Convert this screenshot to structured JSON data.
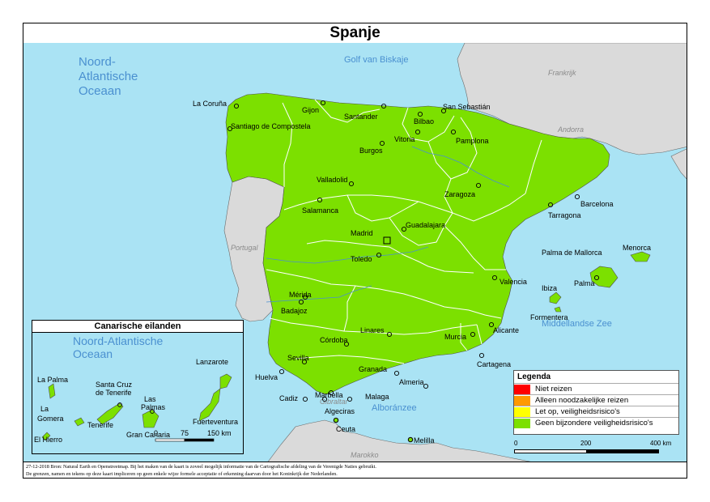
{
  "title": "Spanje",
  "colors": {
    "sea": "#aae3f4",
    "spain": "#7ce000",
    "neighbor": "#dadada",
    "border": "#ffffff",
    "coast": "#6a6a6a"
  },
  "seas": {
    "atlantic": [
      "Noord-",
      "Atlantische",
      "Oceaan"
    ],
    "biscay": "Golf van Biskaje",
    "med": "Middellandse Zee",
    "alboran": "Alboránzee"
  },
  "countries": {
    "france": "Frankrijk",
    "andorra": "Andorra",
    "portugal": "Portugal",
    "morocco": "Marokko",
    "gibraltar": "Gibraltar"
  },
  "cities": {
    "la_coruna": "La Coruña",
    "gijon": "Gijon",
    "santander": "Santander",
    "bilbao": "Bilbao",
    "san_sebastian": "San Sebastián",
    "santiago": "Santiago de Compostela",
    "vitoria": "Vitoria",
    "pamplona": "Pamplona",
    "burgos": "Burgos",
    "valladolid": "Valladolid",
    "zaragoza": "Zaragoza",
    "barcelona": "Barcelona",
    "tarragona": "Tarragona",
    "salamanca": "Salamanca",
    "guadalajara": "Guadalajara",
    "madrid": "Madrid",
    "toledo": "Toledo",
    "valencia": "Valencia",
    "merida": "Mérida",
    "badajoz": "Badajoz",
    "linares": "Linares",
    "cordoba": "Córdoba",
    "murcia": "Murcia",
    "alicante": "Alicante",
    "sevilla": "Sevilla",
    "granada": "Granada",
    "almeria": "Almeria",
    "cartagena": "Cartagena",
    "huelva": "Huelva",
    "cadiz": "Cadiz",
    "marbella": "Marbella",
    "malaga": "Malaga",
    "algeciras": "Algeciras",
    "ceuta": "Ceuta",
    "melilla": "Melilla",
    "palma_de_mallorca": "Palma de Mallorca",
    "palma": "Palma",
    "menorca": "Menorca",
    "ibiza": "Ibiza",
    "formentera": "Formentera"
  },
  "inset": {
    "title": "Canarische eilanden",
    "ocean": [
      "Noord-Atlantische",
      "Oceaan"
    ],
    "labels": {
      "lanzarote": "Lanzarote",
      "la_palma": "La Palma",
      "santa_cruz": [
        "Santa Cruz",
        "de Tenerife"
      ],
      "las_palmas": [
        "Las",
        "Palmas"
      ],
      "la_gomera": [
        "La",
        "Gomera"
      ],
      "tenerife": "Tenerife",
      "fuerteventura": "Fuerteventura",
      "gran_canaria": "Gran Canaria",
      "el_hierro": "El Hierro"
    },
    "scale": {
      "t0": "0",
      "t1": "75",
      "t2": "150 km"
    }
  },
  "legend": {
    "title": "Legenda",
    "items": [
      {
        "label": "Niet reizen",
        "color": "#ff0000"
      },
      {
        "label": "Alleen noodzakelijke reizen",
        "color": "#ff9900"
      },
      {
        "label": "Let op, veiligheidsrisico's",
        "color": "#ffff00"
      },
      {
        "label": "Geen bijzondere veiligheidsrisico's",
        "color": "#7ce000"
      }
    ]
  },
  "scale": {
    "t0": "0",
    "t1": "200",
    "t2": "400 km"
  },
  "credits": {
    "line1": "27-12-2018 Bron: Natural Earth en Openstreetmap. Bij het maken van de kaart is zoveel mogelijk informatie van de Cartografische afdeling van de Verenigde Naties gebruikt.",
    "line2": "De grenzen, namen en tekens op deze kaart impliceren op geen enkele wijze formele acceptatie of erkenning daarvan door het Koninkrijk der Nederlanden."
  }
}
